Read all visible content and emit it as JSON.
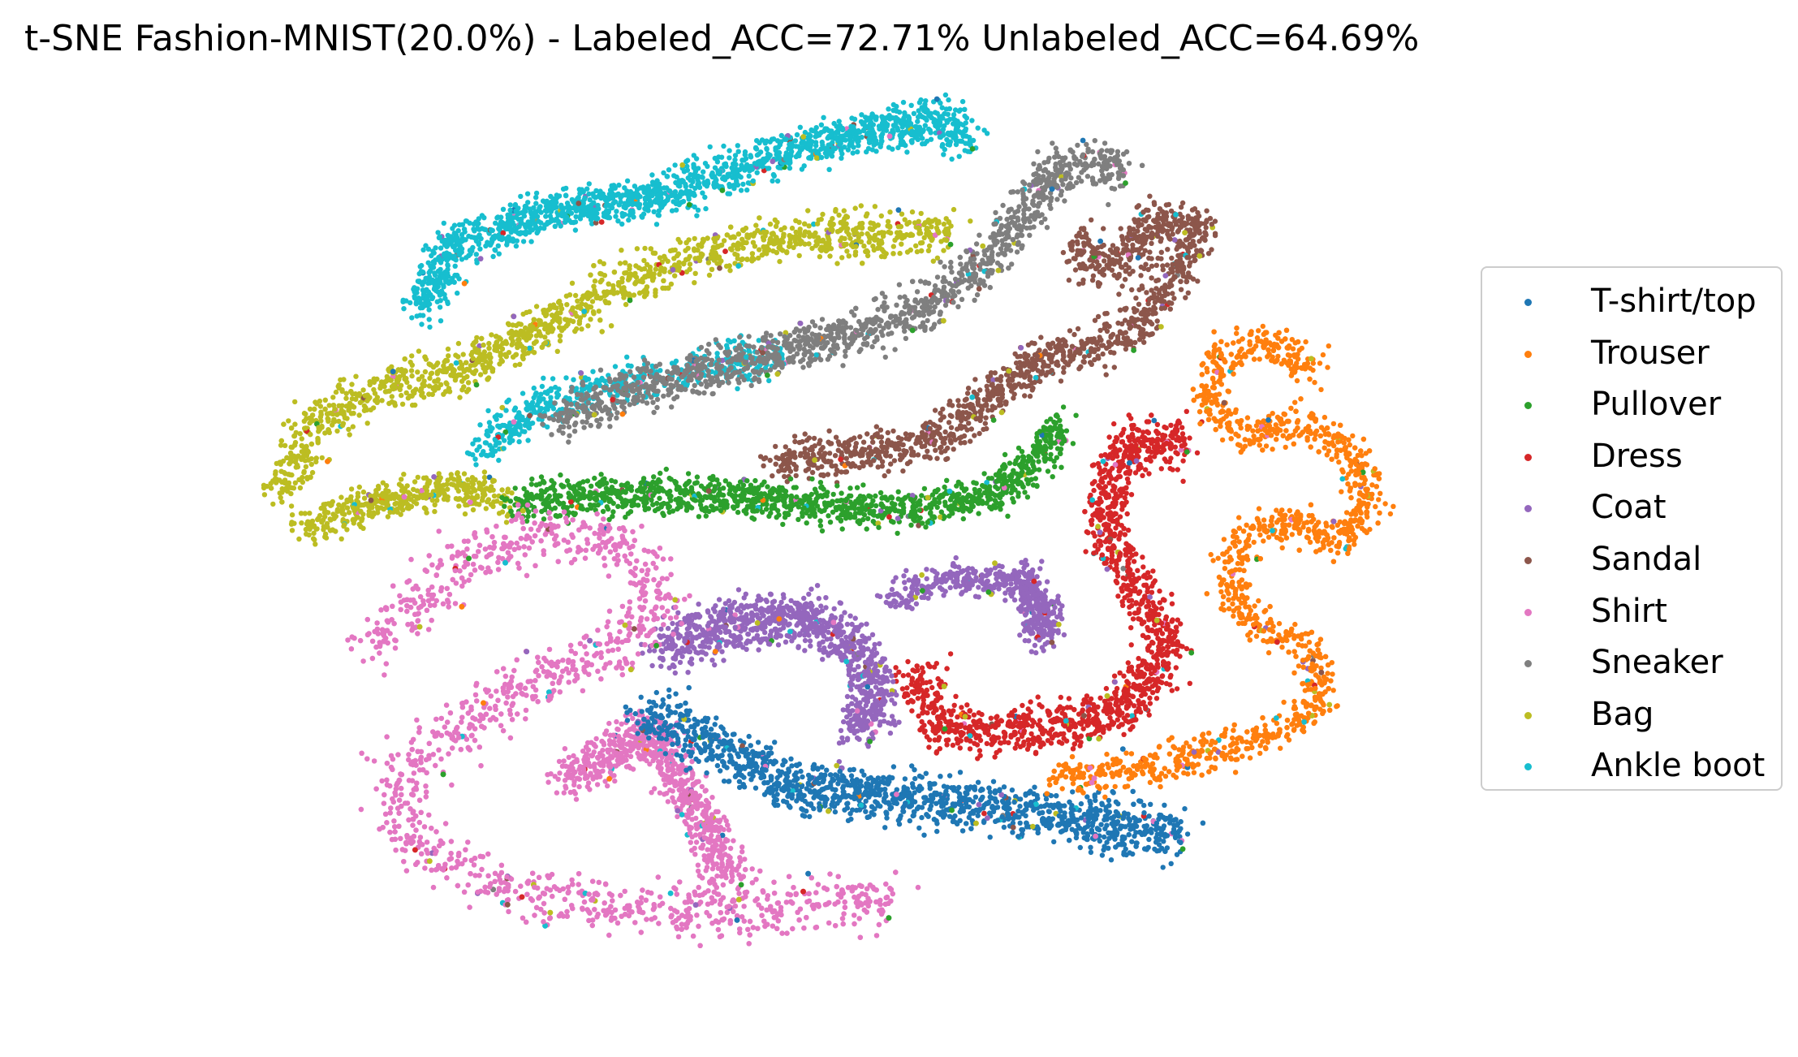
{
  "chart_data": {
    "type": "scatter",
    "title": "t-SNE Fashion-MNIST(20.0%) - Labeled_ACC=72.71% Unlabeled_ACC=64.69%",
    "xlabel": "",
    "ylabel": "",
    "axes_visible": false,
    "grid": false,
    "legend_placement": "right",
    "series": [
      {
        "name": "T-shirt/top",
        "color": "#1f77b4"
      },
      {
        "name": "Trouser",
        "color": "#ff7f0e"
      },
      {
        "name": "Pullover",
        "color": "#2ca02c"
      },
      {
        "name": "Dress",
        "color": "#d62728"
      },
      {
        "name": "Coat",
        "color": "#9467bd"
      },
      {
        "name": "Sandal",
        "color": "#8c564b"
      },
      {
        "name": "Shirt",
        "color": "#e377c2"
      },
      {
        "name": "Sneaker",
        "color": "#7f7f7f"
      },
      {
        "name": "Bag",
        "color": "#bcbd22"
      },
      {
        "name": "Ankle boot",
        "color": "#17becf"
      }
    ]
  }
}
